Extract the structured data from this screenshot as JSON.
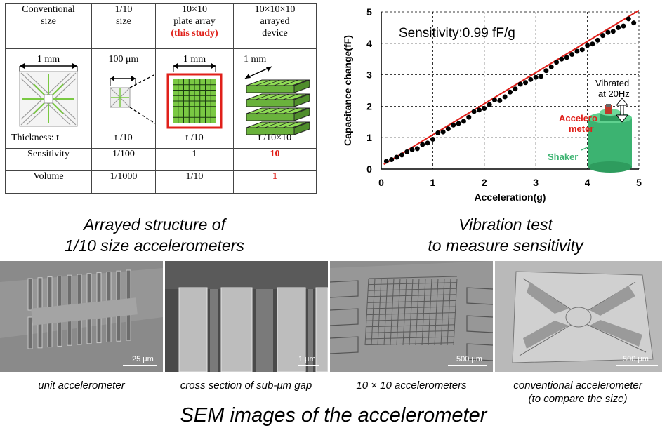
{
  "table": {
    "headers": [
      [
        "Conventional",
        "size"
      ],
      [
        "1/10",
        "size"
      ],
      [
        "10×10",
        "plate array"
      ],
      [
        "10×10×10",
        "arrayed",
        "device"
      ]
    ],
    "header_highlight": "(this study)",
    "dimension_labels": [
      "1 mm",
      "100 μm",
      "1 mm",
      "1 mm"
    ],
    "thickness_labels": [
      "Thickness: t",
      "t /10",
      "t /10",
      "t /10×10"
    ],
    "rows": [
      {
        "label": "Sensitivity",
        "values": [
          "1/100",
          "1",
          "10"
        ]
      },
      {
        "label": "Volume",
        "values": [
          "1/1000",
          "1/10",
          "1"
        ]
      }
    ]
  },
  "captions": {
    "left_title": [
      "Arrayed structure of",
      "1/10 size accelerometers"
    ],
    "right_title": [
      "Vibration test",
      "to measure sensitivity"
    ],
    "bottom_title": "SEM images of the accelerometer"
  },
  "chart_annotation": {
    "sensitivity": "Sensitivity:0.99 fF/g",
    "vibrated": [
      "Vibrated",
      "at 20Hz"
    ],
    "accelerometer": [
      "Accelero",
      "meter"
    ],
    "shaker": "Shaker"
  },
  "colors": {
    "red": "#e0201a",
    "green": "#7ac943",
    "shaker_green": "#3cb371",
    "axis": "#000000"
  },
  "sem": [
    {
      "caption": "unit accelerometer",
      "scale": "25 μm"
    },
    {
      "caption": "cross section of sub-μm gap",
      "scale": "1 μm"
    },
    {
      "caption": "10 × 10 accelerometers",
      "scale": "500 μm"
    },
    {
      "caption": [
        "conventional  accelerometer",
        "(to compare the size)"
      ],
      "scale": "500 μm"
    }
  ],
  "chart_data": {
    "type": "scatter",
    "xlabel": "Acceleration(g)",
    "ylabel": "Capacitance  change(fF)",
    "xlim": [
      0,
      5
    ],
    "ylim": [
      0,
      5
    ],
    "xticks": [
      0,
      1,
      2,
      3,
      4,
      5
    ],
    "yticks": [
      0,
      1,
      2,
      3,
      4,
      5
    ],
    "grid": "dashed",
    "points": {
      "x": [
        0.1,
        0.2,
        0.3,
        0.4,
        0.5,
        0.6,
        0.7,
        0.8,
        0.9,
        1.0,
        1.1,
        1.2,
        1.3,
        1.4,
        1.5,
        1.6,
        1.7,
        1.8,
        1.9,
        2.0,
        2.1,
        2.2,
        2.3,
        2.4,
        2.5,
        2.6,
        2.7,
        2.8,
        2.9,
        3.0,
        3.1,
        3.2,
        3.3,
        3.4,
        3.5,
        3.6,
        3.7,
        3.8,
        3.9,
        4.0,
        4.1,
        4.2,
        4.3,
        4.4,
        4.5,
        4.6,
        4.7,
        4.8,
        4.9
      ],
      "y": [
        0.25,
        0.3,
        0.38,
        0.45,
        0.55,
        0.62,
        0.65,
        0.78,
        0.83,
        0.95,
        1.15,
        1.18,
        1.28,
        1.4,
        1.45,
        1.52,
        1.65,
        1.83,
        1.88,
        1.93,
        2.05,
        2.2,
        2.18,
        2.3,
        2.45,
        2.55,
        2.7,
        2.75,
        2.85,
        2.92,
        2.95,
        3.13,
        3.25,
        3.4,
        3.5,
        3.55,
        3.65,
        3.75,
        3.8,
        3.93,
        3.98,
        4.1,
        4.25,
        4.35,
        4.38,
        4.5,
        4.55,
        4.78,
        4.65
      ]
    },
    "fit": {
      "slope": 0.99,
      "intercept": 0.1
    }
  }
}
